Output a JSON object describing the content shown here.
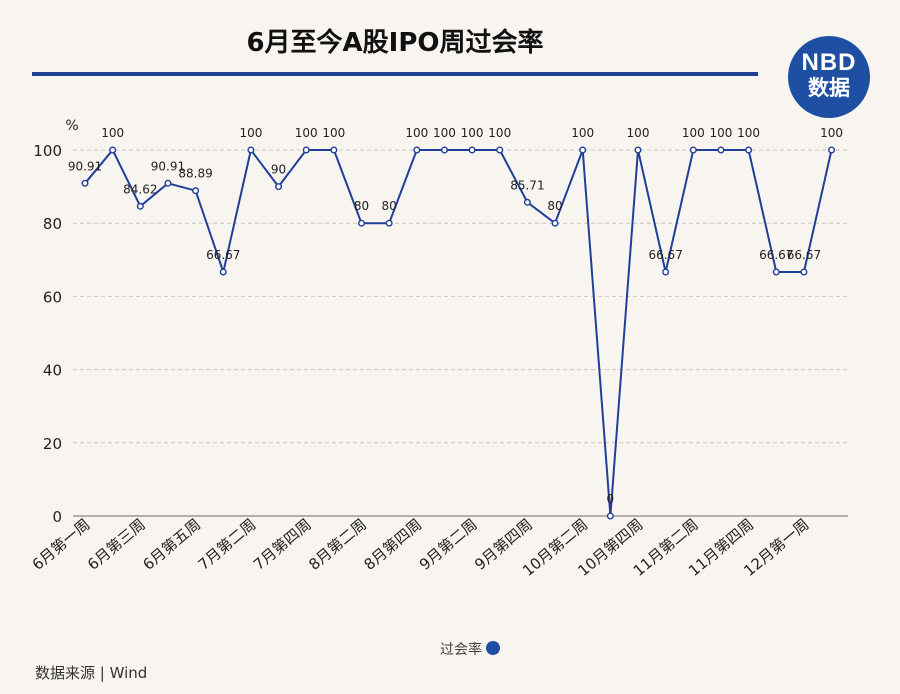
{
  "header": {
    "title": "6月至今A股IPO周过会率",
    "logo_top": "NBD",
    "logo_bottom": "数据"
  },
  "footer": {
    "source": "数据来源 | Wind"
  },
  "chart_data": {
    "type": "line",
    "title": "6月至今A股IPO周过会率",
    "ylabel": "%",
    "ylim": [
      0,
      100
    ],
    "yticks": [
      0,
      20,
      40,
      60,
      80,
      100
    ],
    "grid": true,
    "legend": {
      "position": "bottom",
      "label": "过会率"
    },
    "tick_labels": [
      "6月第一周",
      "6月第三周",
      "6月第五周",
      "7月第二周",
      "7月第四周",
      "8月第二周",
      "8月第四周",
      "9月第二周",
      "9月第四周",
      "10月第二周",
      "10月第四周",
      "11月第二周",
      "11月第四周",
      "12月第一周"
    ],
    "series": [
      {
        "name": "过会率",
        "color": "#1f3f99",
        "values": [
          90.91,
          100,
          84.62,
          90.91,
          88.89,
          66.67,
          100,
          90,
          100,
          100,
          80,
          80,
          100,
          100,
          100,
          100,
          85.71,
          80,
          100,
          0,
          100,
          66.67,
          100,
          100,
          100,
          66.67,
          66.67,
          100
        ],
        "labels": [
          "90.91",
          "100",
          "84.62",
          "90.91",
          "88.89",
          "66.67",
          "100",
          "90",
          "100",
          "100",
          "80",
          "80",
          "100",
          "100",
          "100",
          "100",
          "85.71",
          "80",
          "100",
          "0",
          "100",
          "66.67",
          "100",
          "100",
          "100",
          "66.67",
          "66.67",
          "100"
        ]
      }
    ]
  }
}
